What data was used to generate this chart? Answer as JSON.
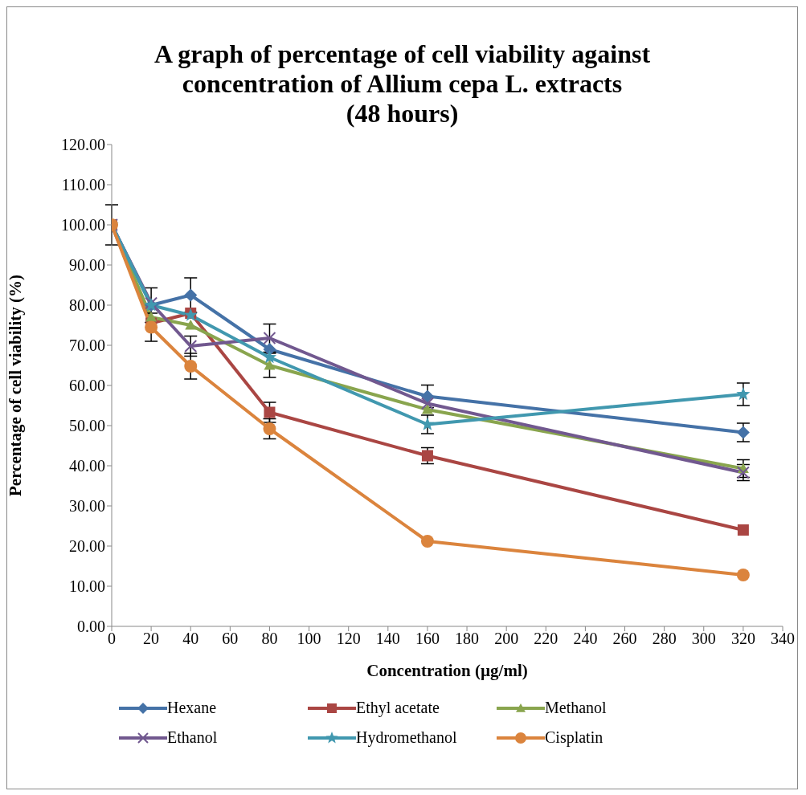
{
  "chart_data": {
    "type": "line",
    "title": "A graph of percentage of cell viability against concentration of Allium cepa L. extracts\n(48 hours)",
    "xlabel": "Concentration (µg/ml)",
    "ylabel": "Percentage of cell viability (%)",
    "x": [
      0,
      20,
      40,
      80,
      160,
      320
    ],
    "xlim": [
      0,
      340
    ],
    "xticks": [
      0,
      20,
      40,
      60,
      80,
      100,
      120,
      140,
      160,
      180,
      200,
      220,
      240,
      260,
      280,
      300,
      320,
      340
    ],
    "ylim": [
      0,
      120
    ],
    "yticks": [
      {
        "value": 0,
        "label": "0.00"
      },
      {
        "value": 10,
        "label": "10.00"
      },
      {
        "value": 20,
        "label": "20.00"
      },
      {
        "value": 30,
        "label": "30.00"
      },
      {
        "value": 40,
        "label": "40.00"
      },
      {
        "value": 50,
        "label": "50.00"
      },
      {
        "value": 60,
        "label": "60.00"
      },
      {
        "value": 70,
        "label": "70.00"
      },
      {
        "value": 80,
        "label": "80.00"
      },
      {
        "value": 90,
        "label": "90.00"
      },
      {
        "value": 100,
        "label": "100.00"
      },
      {
        "value": 110,
        "label": "110.00"
      },
      {
        "value": 120,
        "label": "120.00"
      }
    ],
    "grid": false,
    "legend": "bottom",
    "line_style": "solid",
    "series": [
      {
        "name": "Hexane",
        "color": "#4572a7",
        "marker": "diamond",
        "values": [
          100,
          80,
          82.5,
          69,
          57.3,
          48.3
        ],
        "errors": [
          5,
          4.3,
          4.3,
          null,
          2.8,
          2.3
        ]
      },
      {
        "name": "Ethyl acetate",
        "color": "#aa4643",
        "marker": "square",
        "values": [
          100,
          75.5,
          78,
          53.3,
          42.5,
          24
        ],
        "errors": [
          null,
          null,
          null,
          2.5,
          2,
          null
        ]
      },
      {
        "name": "Methanol",
        "color": "#89a54e",
        "marker": "triangle",
        "values": [
          100,
          77,
          75,
          65,
          54,
          39.3
        ],
        "errors": [
          null,
          null,
          null,
          3,
          null,
          2.2
        ]
      },
      {
        "name": "Ethanol",
        "color": "#71588f",
        "marker": "cross",
        "values": [
          100,
          80.5,
          69.8,
          71.8,
          55.5,
          38.3
        ],
        "errors": [
          null,
          null,
          2.5,
          3.5,
          null,
          2
        ]
      },
      {
        "name": "Hydromethanol",
        "color": "#4198af",
        "marker": "star",
        "values": [
          100,
          80,
          77.5,
          67,
          50.3,
          57.8
        ],
        "errors": [
          null,
          null,
          null,
          null,
          2.3,
          2.8
        ]
      },
      {
        "name": "Cisplatin",
        "color": "#db843d",
        "marker": "circle",
        "values": [
          100,
          74.5,
          64.8,
          49.2,
          21.2,
          12.8
        ],
        "errors": [
          null,
          3.5,
          3.2,
          2.5,
          null,
          null
        ]
      }
    ]
  }
}
